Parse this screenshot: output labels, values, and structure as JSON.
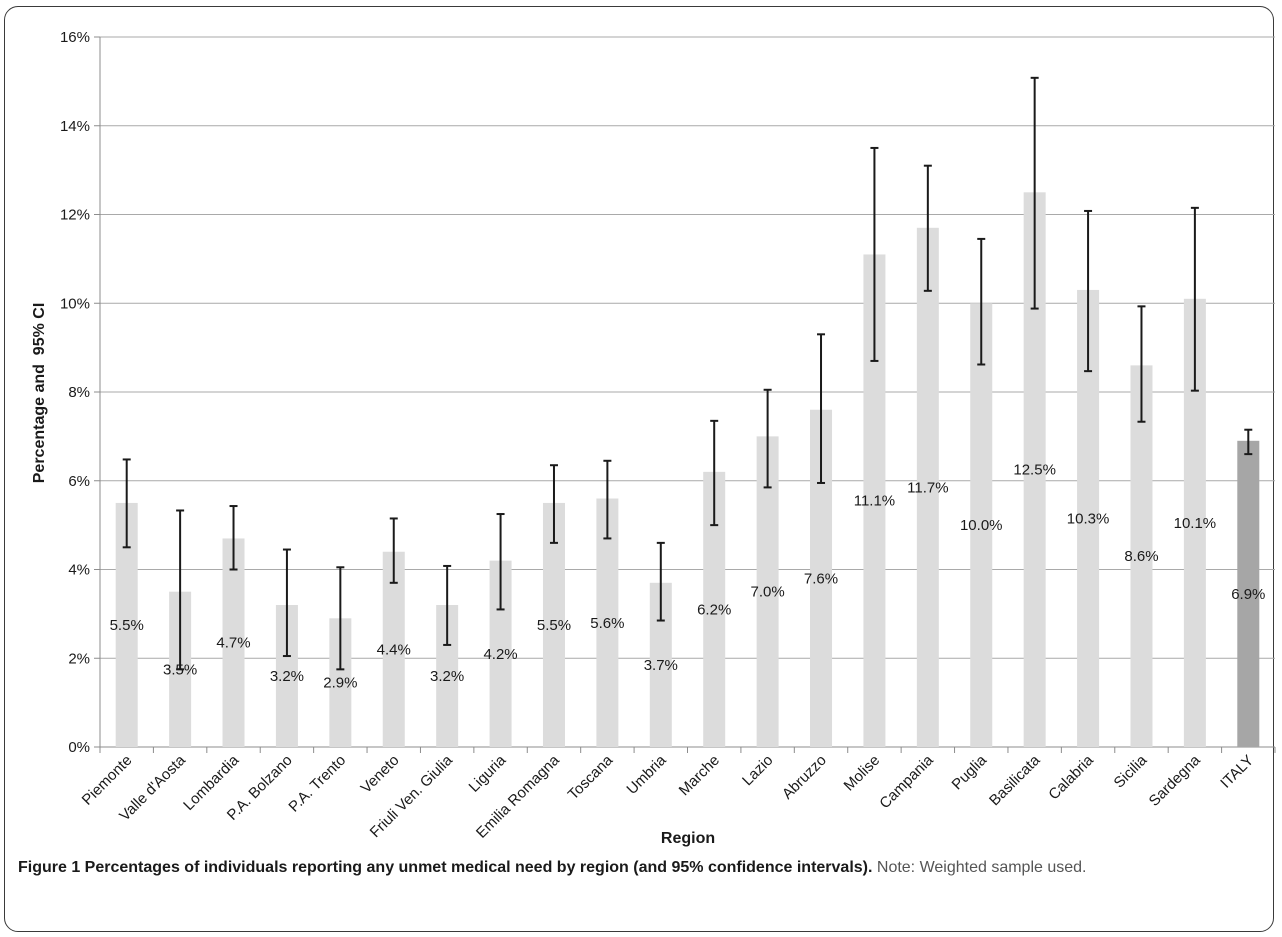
{
  "chart_data": {
    "type": "bar",
    "title": "",
    "xlabel": "Region",
    "ylabel": "Percentage and  95% CI",
    "ylim": [
      0,
      16
    ],
    "yticks": [
      0,
      2,
      4,
      6,
      8,
      10,
      12,
      14,
      16
    ],
    "ytick_labels": [
      "0%",
      "2%",
      "4%",
      "6%",
      "8%",
      "10%",
      "12%",
      "14%",
      "16%"
    ],
    "grid": true,
    "legend": "none",
    "bar_color": "#dcdcdc",
    "highlight_color": "#a6a6a6",
    "errorbar_color": "#1a1a1a",
    "categories": [
      "Piemonte",
      "Valle d'Aosta",
      "Lombardia",
      "P.A. Bolzano",
      "P.A. Trento",
      "Veneto",
      "Friuli Ven. Giulia",
      "Liguria",
      "Emilia Romagna",
      "Toscana",
      "Umbria",
      "Marche",
      "Lazio",
      "Abruzzo",
      "Molise",
      "Campania",
      "Puglia",
      "Basilicata",
      "Calabria",
      "Sicilia",
      "Sardegna",
      "ITALY"
    ],
    "values": [
      5.5,
      3.5,
      4.7,
      3.2,
      2.9,
      4.4,
      3.2,
      4.2,
      5.5,
      5.6,
      3.7,
      6.2,
      7.0,
      7.6,
      11.1,
      11.7,
      10.0,
      12.5,
      10.3,
      8.6,
      10.1,
      6.9
    ],
    "ci_low": [
      4.5,
      1.75,
      4.0,
      2.05,
      1.75,
      3.7,
      2.3,
      3.1,
      4.6,
      4.7,
      2.85,
      5.0,
      5.85,
      5.95,
      8.7,
      10.28,
      8.62,
      9.88,
      8.47,
      7.33,
      8.03,
      6.6
    ],
    "ci_high": [
      6.48,
      5.33,
      5.43,
      4.45,
      4.05,
      5.15,
      4.08,
      5.25,
      6.35,
      6.45,
      4.6,
      7.35,
      8.05,
      9.3,
      13.5,
      13.1,
      11.45,
      15.08,
      12.08,
      9.93,
      12.15,
      7.15
    ],
    "data_labels": [
      "5.5%",
      "3.5%",
      "4.7%",
      "3.2%",
      "2.9%",
      "4.4%",
      "3.2%",
      "4.2%",
      "5.5%",
      "5.6%",
      "3.7%",
      "6.2%",
      "7.0%",
      "7.6%",
      "11.1%",
      "11.7%",
      "10.0%",
      "12.5%",
      "10.3%",
      "8.6%",
      "10.1%",
      "6.9%"
    ],
    "highlight_index": 21
  },
  "caption": {
    "bold": "Figure 1 Percentages of individuals reporting any unmet medical need by region (and 95% confidence intervals).",
    "note": " Note: Weighted sample used."
  }
}
